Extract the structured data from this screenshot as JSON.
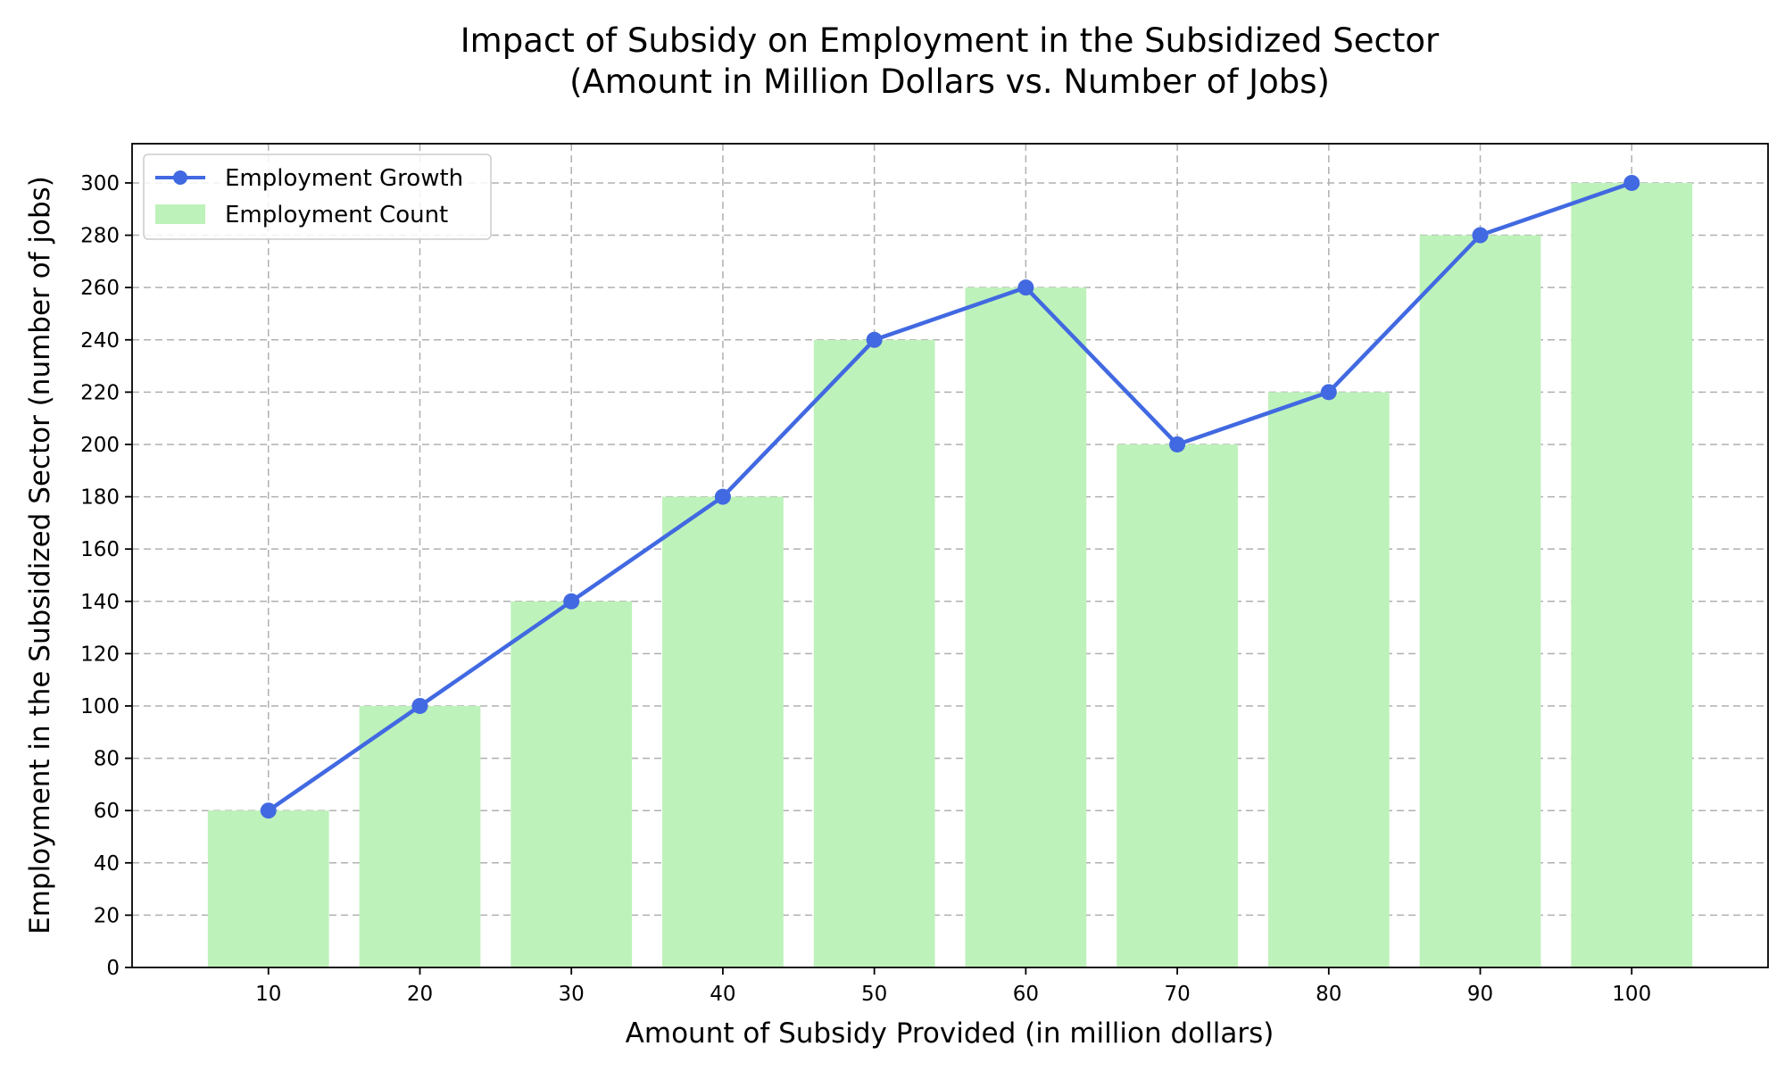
{
  "chart_data": {
    "type": "bar",
    "title_line1": "Impact of Subsidy on Employment in the Subsidized Sector",
    "title_line2": "(Amount in Million Dollars vs. Number of Jobs)",
    "xlabel": "Amount of Subsidy Provided (in million dollars)",
    "ylabel": "Employment in the Subsidized Sector (number of jobs)",
    "x": [
      10,
      20,
      30,
      40,
      50,
      60,
      70,
      80,
      90,
      100
    ],
    "x_tick_labels": [
      "10",
      "20",
      "30",
      "40",
      "50",
      "60",
      "70",
      "80",
      "90",
      "100"
    ],
    "y_tick_labels": [
      "0",
      "20",
      "40",
      "60",
      "80",
      "100",
      "120",
      "140",
      "160",
      "180",
      "200",
      "220",
      "240",
      "260",
      "280",
      "300"
    ],
    "xlim": [
      1,
      109
    ],
    "ylim": [
      0,
      315
    ],
    "grid": true,
    "legend_position": "top-left",
    "series": [
      {
        "name": "Employment Growth",
        "type": "line",
        "color": "#4169e1",
        "marker": "circle",
        "values": [
          60,
          100,
          140,
          180,
          240,
          260,
          200,
          220,
          280,
          300
        ]
      },
      {
        "name": "Employment Count",
        "type": "bar",
        "color": "#bef2bb",
        "values": [
          60,
          100,
          140,
          180,
          240,
          260,
          200,
          220,
          280,
          300
        ]
      }
    ]
  }
}
